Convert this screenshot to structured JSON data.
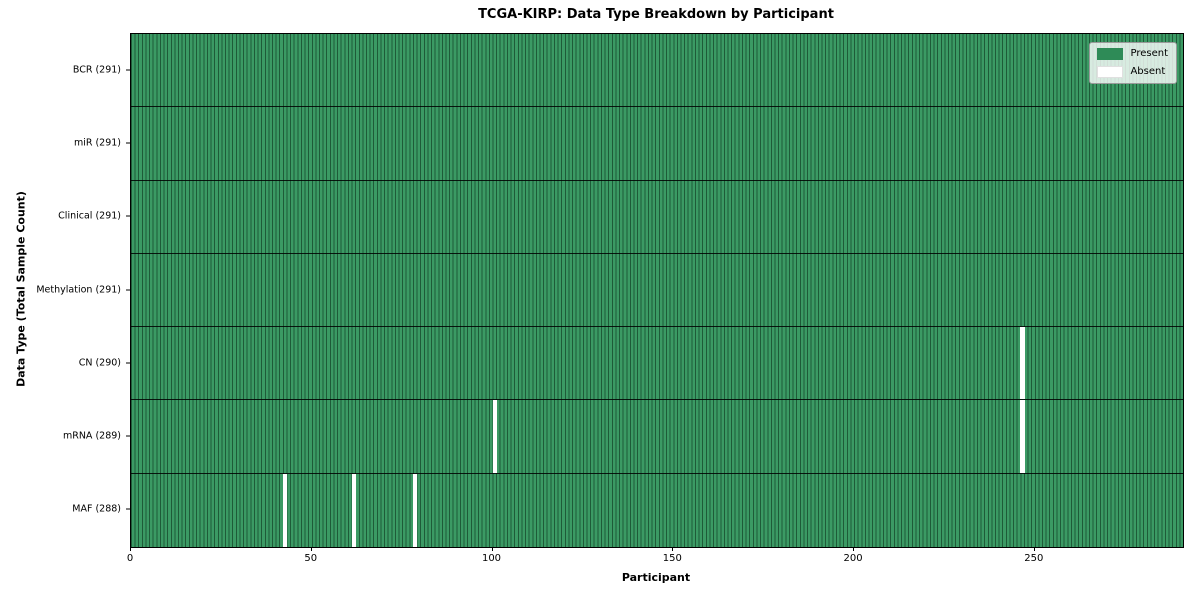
{
  "title": "TCGA-KIRP: Data Type Breakdown by Participant",
  "legend": {
    "items": [
      {
        "label": "Present",
        "color": "#2e8b57",
        "kind": "present"
      },
      {
        "label": "Absent",
        "color": "#ffffff",
        "kind": "absent"
      }
    ]
  },
  "colors": {
    "bar_fill": "#3b9a64",
    "bar_edge": "#1e5b38",
    "present_legend": "#2e8b57",
    "absent": "#ffffff",
    "spine": "#000000"
  },
  "chart_data": {
    "type": "heatmap",
    "title": "TCGA-KIRP: Data Type Breakdown by Participant",
    "xlabel": "Participant",
    "ylabel": "Data Type (Total Sample Count)",
    "n_participants": 291,
    "xlim": [
      0,
      291
    ],
    "x_ticks": [
      0,
      50,
      100,
      150,
      200,
      250
    ],
    "legend_entries": [
      "Present",
      "Absent"
    ],
    "legend_position": "upper right",
    "grid": false,
    "rows": [
      {
        "label": "BCR (291)",
        "data_type": "BCR",
        "present_count": 291,
        "absent_participants": []
      },
      {
        "label": "miR (291)",
        "data_type": "miR",
        "present_count": 291,
        "absent_participants": []
      },
      {
        "label": "Clinical (291)",
        "data_type": "Clinical",
        "present_count": 291,
        "absent_participants": []
      },
      {
        "label": "Methylation (291)",
        "data_type": "Methylation",
        "present_count": 291,
        "absent_participants": []
      },
      {
        "label": "CN (290)",
        "data_type": "CN",
        "present_count": 290,
        "absent_participants": [
          246
        ]
      },
      {
        "label": "mRNA (289)",
        "data_type": "mRNA",
        "present_count": 289,
        "absent_participants": [
          100,
          246
        ]
      },
      {
        "label": "MAF (288)",
        "data_type": "MAF",
        "present_count": 288,
        "absent_participants": [
          42,
          61,
          78
        ]
      }
    ]
  }
}
